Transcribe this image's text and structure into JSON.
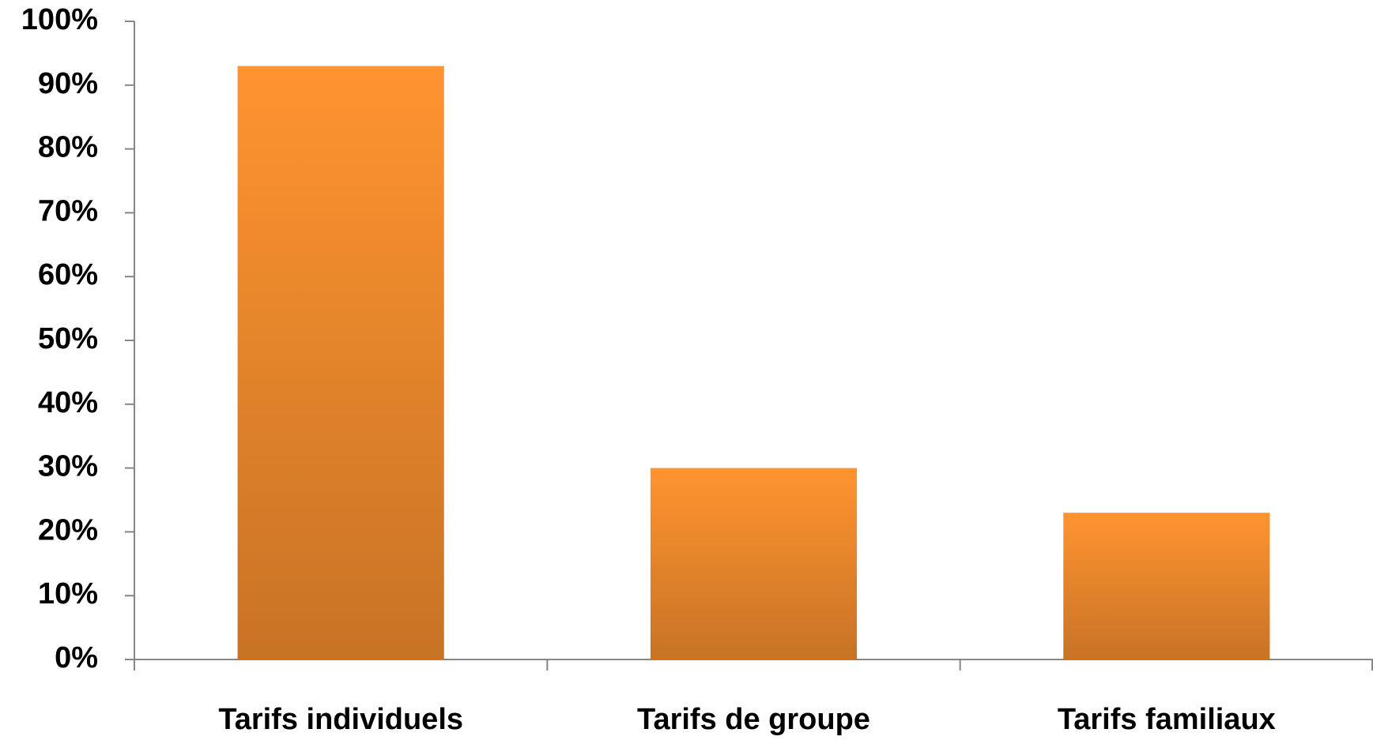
{
  "chart_data": {
    "type": "bar",
    "categories": [
      "Tarifs individuels",
      "Tarifs de groupe",
      "Tarifs familiaux"
    ],
    "values": [
      93,
      30,
      23
    ],
    "color": "#ff9430",
    "ylim": [
      0,
      100
    ],
    "yticks": [
      {
        "value": 0,
        "label": "0%"
      },
      {
        "value": 10,
        "label": "10%"
      },
      {
        "value": 20,
        "label": "20%"
      },
      {
        "value": 30,
        "label": "30%"
      },
      {
        "value": 40,
        "label": "40%"
      },
      {
        "value": 50,
        "label": "50%"
      },
      {
        "value": 60,
        "label": "60%"
      },
      {
        "value": 70,
        "label": "70%"
      },
      {
        "value": 80,
        "label": "80%"
      },
      {
        "value": 90,
        "label": "90%"
      },
      {
        "value": 100,
        "label": "100%"
      }
    ],
    "grid": false
  }
}
